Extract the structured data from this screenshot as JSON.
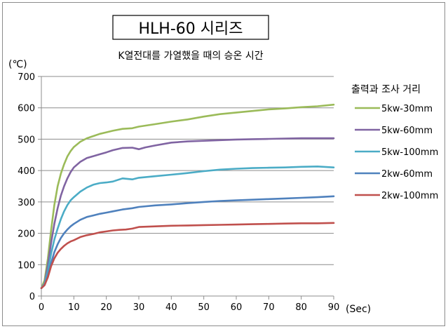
{
  "chart_data": {
    "type": "line",
    "title": "HLH-60 시리즈",
    "subtitle": "K열전대를 가열했을 때의 승온 시간",
    "ylabel": "(℃)",
    "xlabel": "(Sec)",
    "xlim": [
      0,
      90
    ],
    "ylim": [
      0,
      700
    ],
    "x_ticks": [
      0,
      10,
      20,
      30,
      40,
      50,
      60,
      70,
      80,
      90
    ],
    "y_ticks": [
      0,
      100,
      200,
      300,
      400,
      500,
      600,
      700
    ],
    "grid": "horizontal",
    "legend": {
      "title": "출력과 조사 거리",
      "placement": "right"
    },
    "series": [
      {
        "name": "5kw-30mm",
        "color": "#9bbb59",
        "x": [
          0,
          1,
          2,
          3,
          4,
          5,
          6,
          7,
          8,
          9,
          10,
          12,
          14,
          16,
          18,
          20,
          22,
          25,
          28,
          30,
          35,
          40,
          45,
          50,
          55,
          60,
          65,
          70,
          75,
          80,
          85,
          90
        ],
        "y": [
          25,
          50,
          120,
          210,
          290,
          350,
          390,
          420,
          445,
          462,
          475,
          492,
          503,
          510,
          517,
          522,
          527,
          533,
          535,
          540,
          548,
          556,
          563,
          572,
          580,
          585,
          590,
          595,
          598,
          602,
          605,
          610
        ]
      },
      {
        "name": "5kw-60mm",
        "color": "#8064a2",
        "x": [
          0,
          1,
          2,
          3,
          4,
          5,
          6,
          7,
          8,
          9,
          10,
          12,
          14,
          16,
          18,
          20,
          22,
          25,
          28,
          30,
          32,
          35,
          40,
          45,
          50,
          55,
          60,
          65,
          70,
          75,
          80,
          85,
          90
        ],
        "y": [
          25,
          40,
          100,
          170,
          230,
          280,
          320,
          350,
          375,
          395,
          410,
          428,
          440,
          446,
          452,
          458,
          465,
          472,
          473,
          468,
          474,
          480,
          489,
          493,
          495,
          497,
          499,
          500,
          501,
          502,
          503,
          503,
          503
        ]
      },
      {
        "name": "5kw-100mm",
        "color": "#4bacc6",
        "x": [
          0,
          1,
          2,
          3,
          4,
          5,
          6,
          7,
          8,
          9,
          10,
          12,
          14,
          16,
          18,
          20,
          22,
          25,
          28,
          30,
          35,
          40,
          45,
          50,
          55,
          60,
          65,
          70,
          75,
          80,
          85,
          90
        ],
        "y": [
          25,
          38,
          80,
          135,
          180,
          215,
          245,
          270,
          290,
          305,
          315,
          333,
          346,
          355,
          360,
          362,
          365,
          375,
          372,
          377,
          382,
          387,
          392,
          398,
          403,
          406,
          408,
          409,
          410,
          412,
          413,
          410
        ]
      },
      {
        "name": "2kw-60mm",
        "color": "#4f81bd",
        "x": [
          0,
          1,
          2,
          3,
          4,
          5,
          6,
          7,
          8,
          9,
          10,
          12,
          14,
          16,
          18,
          20,
          22,
          25,
          28,
          30,
          35,
          40,
          45,
          50,
          55,
          60,
          65,
          70,
          75,
          80,
          85,
          90
        ],
        "y": [
          25,
          35,
          65,
          105,
          140,
          165,
          185,
          200,
          212,
          222,
          230,
          243,
          252,
          257,
          262,
          266,
          270,
          276,
          280,
          284,
          289,
          292,
          296,
          300,
          303,
          305,
          307,
          309,
          311,
          313,
          315,
          318
        ]
      },
      {
        "name": "2kw-100mm",
        "color": "#c0504d",
        "x": [
          0,
          1,
          2,
          3,
          4,
          5,
          6,
          7,
          8,
          9,
          10,
          12,
          14,
          16,
          18,
          20,
          22,
          24,
          26,
          28,
          30,
          35,
          40,
          45,
          50,
          55,
          60,
          65,
          70,
          75,
          80,
          85,
          90
        ],
        "y": [
          25,
          35,
          60,
          95,
          120,
          138,
          150,
          160,
          168,
          174,
          178,
          188,
          194,
          198,
          203,
          206,
          209,
          211,
          212,
          215,
          220,
          222,
          224,
          225,
          226,
          227,
          228,
          229,
          230,
          231,
          232,
          232,
          233
        ]
      }
    ]
  }
}
